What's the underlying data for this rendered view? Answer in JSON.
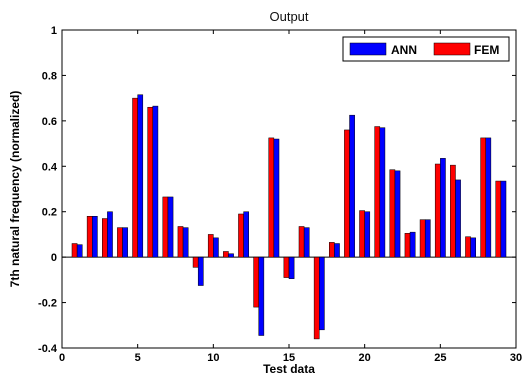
{
  "chart_data": {
    "type": "bar",
    "title": "Output",
    "xlabel": "Test data",
    "ylabel": "7th natural frequency (normalized)",
    "xlim": [
      0,
      30
    ],
    "ylim": [
      -0.4,
      1
    ],
    "x_ticks": [
      0,
      5,
      10,
      15,
      20,
      25,
      30
    ],
    "y_ticks": [
      -0.4,
      -0.2,
      0,
      0.2,
      0.4,
      0.6,
      0.8,
      1
    ],
    "x_tick_labels": [
      "0",
      "5",
      "10",
      "15",
      "20",
      "25",
      "30"
    ],
    "y_tick_labels": [
      "-0.4",
      "-0.2",
      "0",
      "0.2",
      "0.4",
      "0.6",
      "0.8",
      "1"
    ],
    "grid": false,
    "legend_position": "top-right",
    "x": [
      1,
      2,
      3,
      4,
      5,
      6,
      7,
      8,
      9,
      10,
      11,
      12,
      13,
      14,
      15,
      16,
      17,
      18,
      19,
      20,
      21,
      22,
      23,
      24,
      25,
      26,
      27,
      28,
      29
    ],
    "series": [
      {
        "name": "FEM",
        "color": "#ff0000",
        "values": [
          0.06,
          0.18,
          0.17,
          0.13,
          0.7,
          0.66,
          0.265,
          0.135,
          -0.045,
          0.1,
          0.025,
          0.19,
          -0.22,
          0.525,
          -0.09,
          0.135,
          -0.36,
          0.065,
          0.56,
          0.205,
          0.575,
          0.385,
          0.105,
          0.165,
          0.41,
          0.405,
          0.09,
          0.525,
          0.335
        ]
      },
      {
        "name": "ANN",
        "color": "#0000ff",
        "values": [
          0.055,
          0.18,
          0.2,
          0.13,
          0.715,
          0.665,
          0.265,
          0.13,
          -0.125,
          0.085,
          0.015,
          0.2,
          -0.345,
          0.52,
          -0.095,
          0.13,
          -0.32,
          0.06,
          0.625,
          0.2,
          0.57,
          0.38,
          0.11,
          0.165,
          0.435,
          0.34,
          0.085,
          0.525,
          0.335
        ]
      }
    ]
  }
}
